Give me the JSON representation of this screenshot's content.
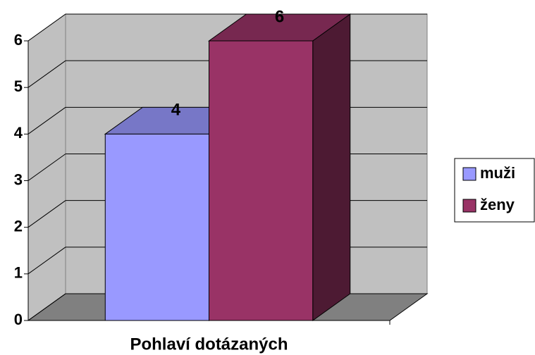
{
  "chart_data": {
    "type": "bar",
    "categories": [
      "Pohlaví dotázaných"
    ],
    "series": [
      {
        "name": "muži",
        "color": "#9999ff",
        "values": [
          4
        ]
      },
      {
        "name": "ženy",
        "color": "#993366",
        "values": [
          6
        ]
      }
    ],
    "ylim": [
      0,
      6
    ],
    "yticks": [
      0,
      1,
      2,
      3,
      4,
      5,
      6
    ],
    "grid": true,
    "legend": "right",
    "data_labels": true
  }
}
